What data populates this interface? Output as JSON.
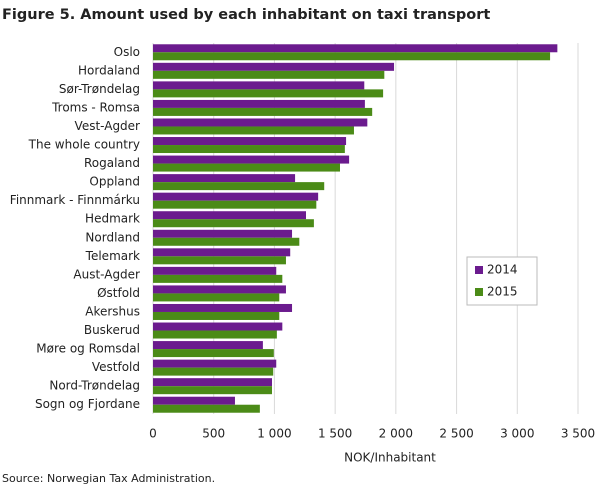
{
  "chart_data": {
    "type": "hbar",
    "title": "Figure 5. Amount used by each inhabitant on taxi transport",
    "x_label": "NOK/Inhabitant",
    "source": "Source: Norwegian Tax Administration.",
    "categories": [
      "Oslo",
      "Hordaland",
      "Sør-Trøndelag",
      "Troms - Romsa",
      "Vest-Agder",
      "The whole country",
      "Rogaland",
      "Oppland",
      "Finnmark - Finnmárku",
      "Hedmark",
      "Nordland",
      "Telemark",
      "Aust-Agder",
      "Østfold",
      "Akershus",
      "Buskerud",
      "Møre og Romsdal",
      "Vestfold",
      "Nord-Trøndelag",
      "Sogn og Fjordane"
    ],
    "series": [
      {
        "name": "2014",
        "color": "#6b1b8e",
        "values": [
          3330,
          1985,
          1740,
          1745,
          1765,
          1590,
          1615,
          1170,
          1360,
          1260,
          1145,
          1130,
          1015,
          1095,
          1145,
          1065,
          905,
          1015,
          980,
          675
        ]
      },
      {
        "name": "2015",
        "color": "#4b8b17",
        "values": [
          3270,
          1905,
          1895,
          1805,
          1655,
          1580,
          1540,
          1410,
          1345,
          1325,
          1205,
          1095,
          1065,
          1040,
          1040,
          1020,
          995,
          990,
          980,
          880
        ]
      }
    ],
    "xlim": [
      0,
      3500
    ],
    "xticks": [
      0,
      500,
      {
        "value": 1000,
        "label": "1 000"
      },
      {
        "value": 1500,
        "label": "1 500"
      },
      {
        "value": 2000,
        "label": "2 000"
      },
      {
        "value": 2500,
        "label": "2 500"
      },
      {
        "value": 3000,
        "label": "3 000"
      },
      {
        "value": 3500,
        "label": "3 500"
      }
    ],
    "grid": true,
    "legend": "right"
  }
}
